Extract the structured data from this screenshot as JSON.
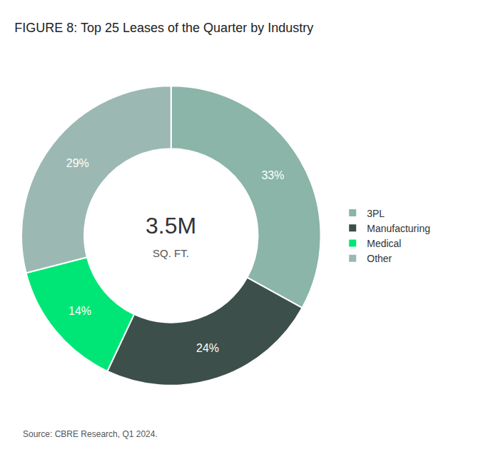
{
  "chart_data": {
    "type": "donut",
    "title": "FIGURE 8: Top 25 Leases of the Quarter by Industry",
    "categories": [
      "3PL",
      "Manufacturing",
      "Medical",
      "Other"
    ],
    "values": [
      33,
      24,
      14,
      29
    ],
    "value_labels": [
      "33%",
      "24%",
      "14%",
      "29%"
    ],
    "colors": [
      "#8ab5a8",
      "#3d4f4a",
      "#00e676",
      "#9cb8b2"
    ],
    "data_labels": true,
    "legend": "right",
    "annotations": [
      "3.5M",
      "SQ. FT."
    ],
    "source": "Source: CBRE Research, Q1 2024."
  }
}
